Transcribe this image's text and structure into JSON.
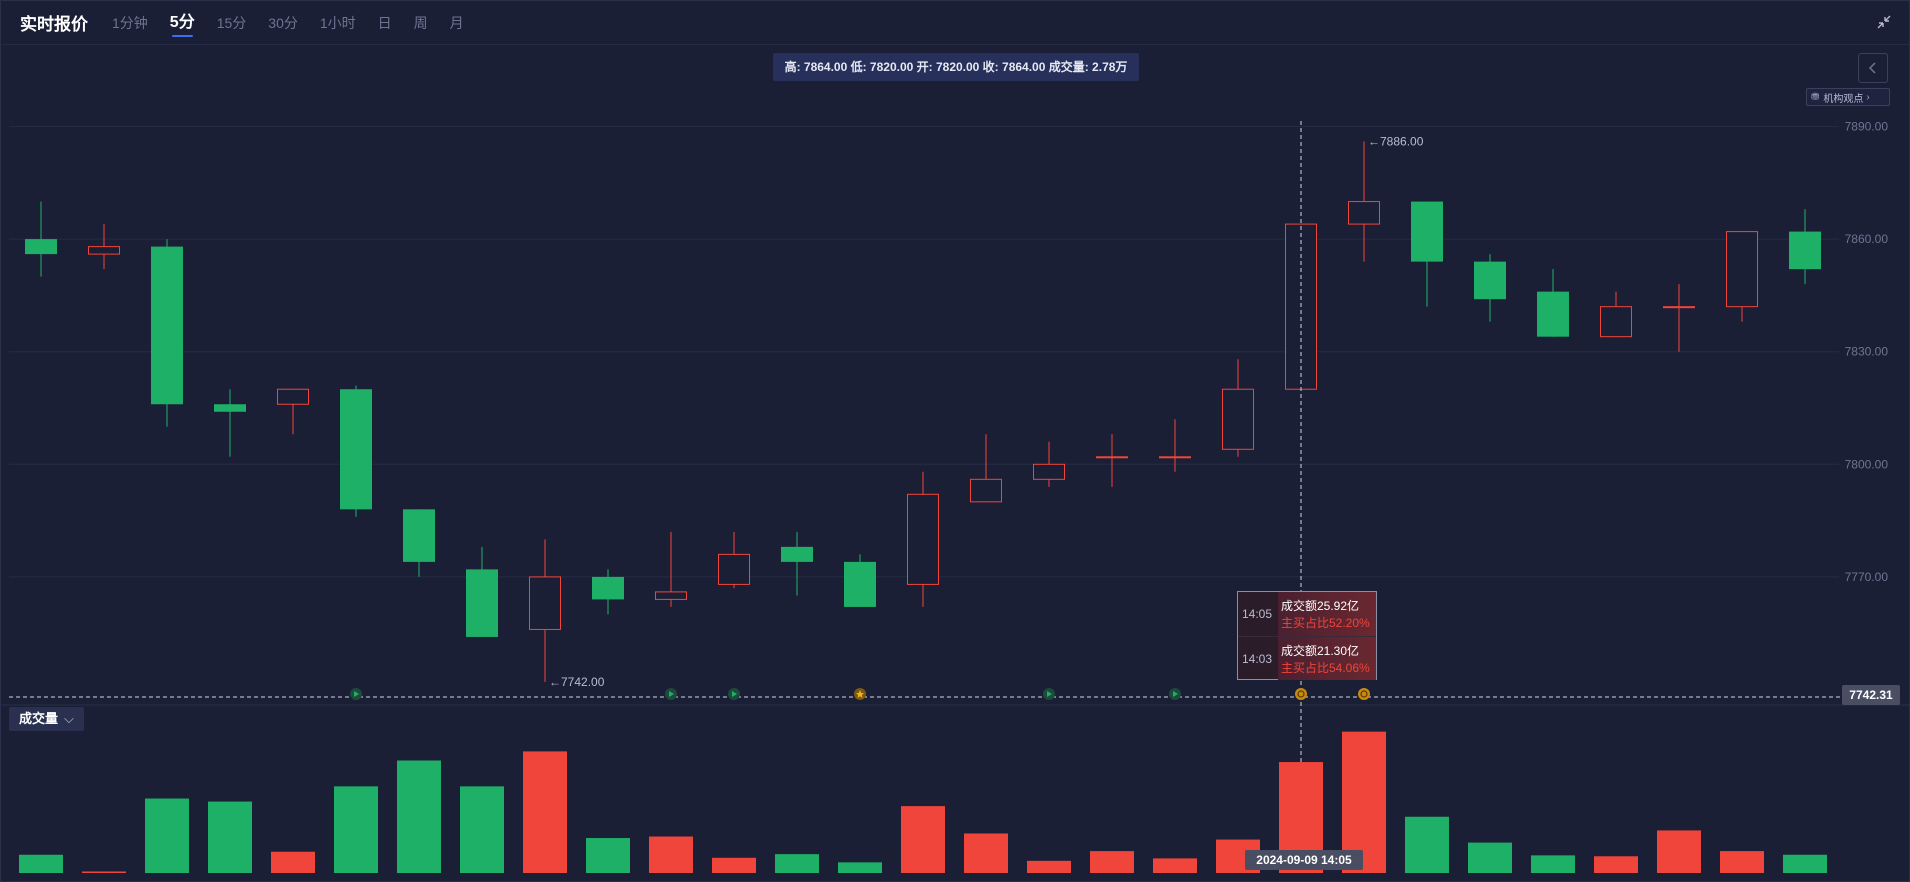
{
  "header": {
    "title": "实时报价",
    "tabs": [
      {
        "label": "1分钟",
        "active": false
      },
      {
        "label": "5分",
        "active": true
      },
      {
        "label": "15分",
        "active": false
      },
      {
        "label": "30分",
        "active": false
      },
      {
        "label": "1小时",
        "active": false
      },
      {
        "label": "日",
        "active": false
      },
      {
        "label": "周",
        "active": false
      },
      {
        "label": "月",
        "active": false
      }
    ],
    "collapse_icon": "collapse-arrows-icon"
  },
  "ohlc_info": "高: 7864.00 低: 7820.00 开: 7820.00 收: 7864.00 成交量: 2.78万",
  "view_button": {
    "label": "机构观点",
    "icon": "robot-icon"
  },
  "volume_panel": {
    "label": "成交量"
  },
  "tooltip": [
    {
      "time": "14:05",
      "amount": "成交额25.92亿",
      "ratio": "主买占比52.20%"
    },
    {
      "time": "14:03",
      "amount": "成交额21.30亿",
      "ratio": "主买占比54.06%"
    }
  ],
  "crosshair": {
    "price_label": "7742.31",
    "time_label": "2024-09-09 14:05"
  },
  "colors": {
    "up": "#f0453a",
    "down": "#1fb068",
    "background": "#1b1f36",
    "grid": "#262b45",
    "accent": "#3d6df2"
  },
  "chart_data": {
    "type": "candlestick",
    "y_ticks": [
      "7890.00",
      "7860.00",
      "7830.00",
      "7800.00",
      "7770.00"
    ],
    "ylim": [
      7738,
      7892
    ],
    "high_annotation": "←7886.00",
    "low_annotation": "←7742.00",
    "candles": [
      {
        "o": 7860,
        "h": 7870,
        "l": 7850,
        "c": 7856
      },
      {
        "o": 7856,
        "h": 7864,
        "l": 7852,
        "c": 7858
      },
      {
        "o": 7858,
        "h": 7860,
        "l": 7810,
        "c": 7816
      },
      {
        "o": 7816,
        "h": 7820,
        "l": 7802,
        "c": 7814
      },
      {
        "o": 7816,
        "h": 7820,
        "l": 7808,
        "c": 7820
      },
      {
        "o": 7820,
        "h": 7821,
        "l": 7786,
        "c": 7788
      },
      {
        "o": 7788,
        "h": 7788,
        "l": 7770,
        "c": 7774
      },
      {
        "o": 7772,
        "h": 7778,
        "l": 7754,
        "c": 7754
      },
      {
        "o": 7756,
        "h": 7780,
        "l": 7742,
        "c": 7770
      },
      {
        "o": 7770,
        "h": 7772,
        "l": 7760,
        "c": 7764
      },
      {
        "o": 7764,
        "h": 7782,
        "l": 7762,
        "c": 7766
      },
      {
        "o": 7768,
        "h": 7782,
        "l": 7767,
        "c": 7776
      },
      {
        "o": 7778,
        "h": 7782,
        "l": 7765,
        "c": 7774
      },
      {
        "o": 7774,
        "h": 7776,
        "l": 7762,
        "c": 7762
      },
      {
        "o": 7768,
        "h": 7798,
        "l": 7762,
        "c": 7792
      },
      {
        "o": 7790,
        "h": 7808,
        "l": 7790,
        "c": 7796
      },
      {
        "o": 7796,
        "h": 7806,
        "l": 7794,
        "c": 7800
      },
      {
        "o": 7802,
        "h": 7808,
        "l": 7794,
        "c": 7802
      },
      {
        "o": 7802,
        "h": 7812,
        "l": 7798,
        "c": 7802
      },
      {
        "o": 7804,
        "h": 7828,
        "l": 7802,
        "c": 7820
      },
      {
        "o": 7820,
        "h": 7864,
        "l": 7820,
        "c": 7864
      },
      {
        "o": 7864,
        "h": 7886,
        "l": 7854,
        "c": 7870
      },
      {
        "o": 7870,
        "h": 7870,
        "l": 7842,
        "c": 7854
      },
      {
        "o": 7854,
        "h": 7856,
        "l": 7838,
        "c": 7844
      },
      {
        "o": 7846,
        "h": 7852,
        "l": 7834,
        "c": 7834
      },
      {
        "o": 7834,
        "h": 7846,
        "l": 7834,
        "c": 7842
      },
      {
        "o": 7842,
        "h": 7848,
        "l": 7830,
        "c": 7842
      },
      {
        "o": 7842,
        "h": 7862,
        "l": 7838,
        "c": 7862
      },
      {
        "o": 7862,
        "h": 7868,
        "l": 7848,
        "c": 7852
      }
    ],
    "volumes": [
      0.6,
      0.05,
      2.45,
      2.35,
      0.7,
      2.85,
      3.7,
      2.85,
      4.0,
      1.15,
      1.2,
      0.5,
      0.62,
      0.35,
      2.2,
      1.3,
      0.4,
      0.72,
      0.48,
      1.1,
      3.65,
      4.65,
      1.85,
      1.0,
      0.58,
      0.55,
      1.4,
      0.72,
      0.6
    ],
    "volume_max": 5.0,
    "markers": [
      {
        "index": 5,
        "type": "info"
      },
      {
        "index": 10,
        "type": "info"
      },
      {
        "index": 11,
        "type": "info"
      },
      {
        "index": 13,
        "type": "star"
      },
      {
        "index": 16,
        "type": "info"
      },
      {
        "index": 18,
        "type": "info"
      },
      {
        "index": 20,
        "type": "coin"
      },
      {
        "index": 21,
        "type": "coin"
      }
    ]
  }
}
